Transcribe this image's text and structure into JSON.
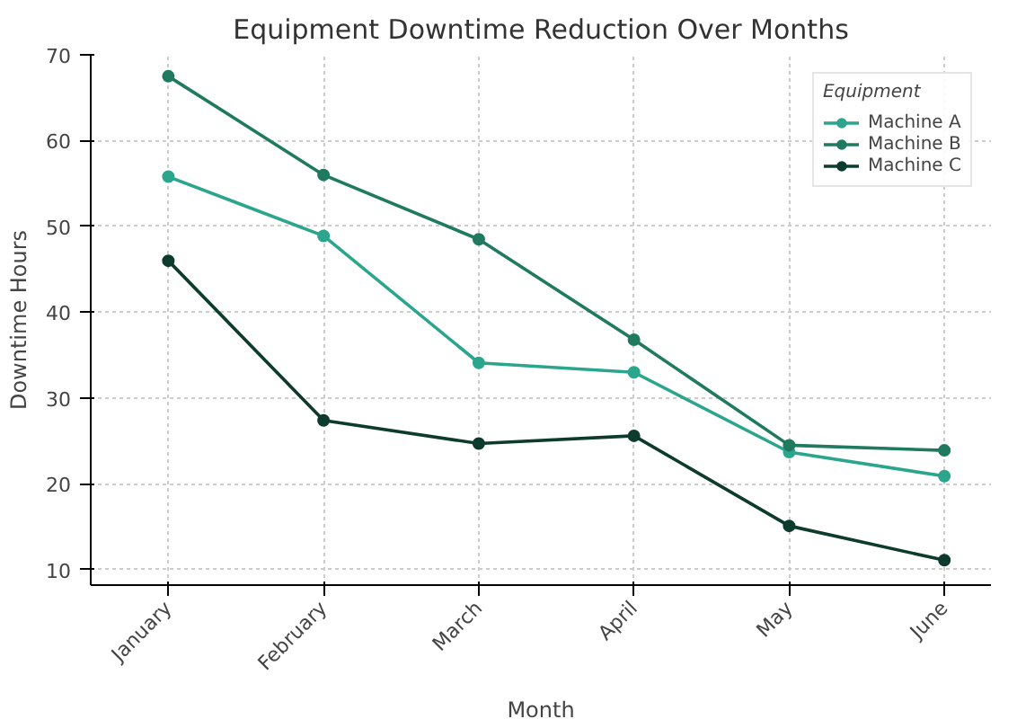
{
  "chart_data": {
    "type": "line",
    "title": "Equipment Downtime Reduction Over Months",
    "xlabel": "Month",
    "ylabel": "Downtime Hours",
    "legend_title": "Equipment",
    "categories": [
      "January",
      "February",
      "March",
      "April",
      "May",
      "June"
    ],
    "series": [
      {
        "name": "Machine A",
        "color": "#2ca58d",
        "values": [
          55.8,
          48.9,
          34.1,
          33.0,
          23.7,
          20.9
        ]
      },
      {
        "name": "Machine B",
        "color": "#1f7a5f",
        "values": [
          67.5,
          56.0,
          48.5,
          36.8,
          24.5,
          23.9
        ]
      },
      {
        "name": "Machine C",
        "color": "#0d3b2e",
        "values": [
          46.0,
          27.4,
          24.7,
          25.6,
          15.1,
          11.1
        ]
      }
    ],
    "ylim": [
      8.2,
      70
    ],
    "yticks": [
      10,
      20,
      30,
      40,
      50,
      60,
      70
    ],
    "grid": true,
    "legend": "top right",
    "marker": "circle",
    "line_style": "solid"
  }
}
